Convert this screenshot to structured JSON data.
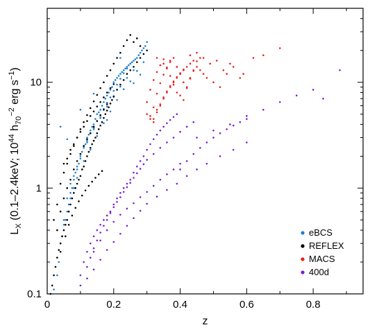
{
  "chart_data": {
    "type": "scatter",
    "title": "",
    "xlabel": "z",
    "ylabel": "L_X (0.1–2.4keV; 10^44 h_70^-2 erg s^-1)",
    "ylabel_parts": {
      "base": "L",
      "sub": "X",
      "p1": " (0.1–2.4keV; 10",
      "sup1": "44",
      "p2": " h",
      "sub2": "70",
      "sup2": "−2",
      "p3": " erg s",
      "sup3": "−1",
      "p4": ")"
    },
    "xlim": [
      0,
      0.95
    ],
    "ylim": [
      0.1,
      50
    ],
    "yscale": "log",
    "x_ticks": [
      {
        "value": 0,
        "label": "0"
      },
      {
        "value": 0.2,
        "label": "0.2"
      },
      {
        "value": 0.4,
        "label": "0.4"
      },
      {
        "value": 0.6,
        "label": "0.6"
      },
      {
        "value": 0.8,
        "label": "0.8"
      }
    ],
    "y_ticks": [
      {
        "value": 0.1,
        "label": "0.1"
      },
      {
        "value": 1,
        "label": "1"
      },
      {
        "value": 10,
        "label": "10"
      }
    ],
    "grid": false,
    "legend_position": "bottom-right",
    "series": [
      {
        "name": "eBCS",
        "color": "#1f7fd0",
        "x": [
          0.02,
          0.03,
          0.035,
          0.04,
          0.045,
          0.05,
          0.055,
          0.06,
          0.065,
          0.07,
          0.075,
          0.08,
          0.085,
          0.09,
          0.095,
          0.1,
          0.105,
          0.11,
          0.115,
          0.12,
          0.125,
          0.13,
          0.135,
          0.14,
          0.145,
          0.15,
          0.155,
          0.16,
          0.165,
          0.17,
          0.175,
          0.18,
          0.185,
          0.19,
          0.195,
          0.2,
          0.205,
          0.21,
          0.215,
          0.22,
          0.225,
          0.23,
          0.235,
          0.24,
          0.245,
          0.25,
          0.255,
          0.26,
          0.265,
          0.27,
          0.275,
          0.28,
          0.285,
          0.29,
          0.295,
          0.3,
          0.06,
          0.07,
          0.08,
          0.09,
          0.1,
          0.11,
          0.12,
          0.13,
          0.14,
          0.15,
          0.16,
          0.17,
          0.18,
          0.19,
          0.2,
          0.21,
          0.22,
          0.23,
          0.24,
          0.25,
          0.08,
          0.1,
          0.12,
          0.14,
          0.16,
          0.18,
          0.2,
          0.22,
          0.24,
          0.26,
          0.05,
          0.07,
          0.09,
          0.11,
          0.13,
          0.15,
          0.17,
          0.19,
          0.21,
          0.23,
          0.25,
          0.27,
          0.29,
          0.04,
          0.06,
          0.1,
          0.14,
          0.18,
          0.22,
          0.26,
          0.28
        ],
        "y": [
          0.11,
          0.15,
          0.2,
          0.3,
          0.35,
          0.45,
          0.5,
          0.6,
          0.7,
          0.8,
          1.0,
          1.2,
          1.4,
          1.5,
          1.7,
          2.0,
          2.2,
          2.5,
          2.6,
          3.0,
          3.2,
          3.5,
          3.8,
          4.0,
          4.5,
          5.0,
          5.2,
          5.5,
          6.0,
          6.5,
          7.0,
          7.5,
          8.0,
          8.5,
          9.0,
          10,
          10.5,
          11,
          11.5,
          12,
          12.5,
          13,
          13.5,
          14,
          14.5,
          15,
          15.5,
          16,
          16.5,
          17,
          18,
          19,
          20,
          21,
          22,
          24,
          0.8,
          1.1,
          1.3,
          1.6,
          2.1,
          2.4,
          2.8,
          3.3,
          3.7,
          4.3,
          4.8,
          5.6,
          6.4,
          7.2,
          8.3,
          9.5,
          10.8,
          12.2,
          13.5,
          15,
          1.0,
          1.9,
          2.7,
          3.6,
          4.6,
          5.9,
          7.4,
          9.1,
          11,
          13,
          0.5,
          0.9,
          1.25,
          1.8,
          2.3,
          3.1,
          4.1,
          5.3,
          6.8,
          8.6,
          10.2,
          12.8,
          15.5,
          3.8,
          2.9,
          5.5,
          7.8,
          4.4,
          17,
          9.8,
          11.8
        ]
      },
      {
        "name": "REFLEX",
        "color": "#000000",
        "x": [
          0.01,
          0.015,
          0.02,
          0.025,
          0.03,
          0.035,
          0.04,
          0.045,
          0.05,
          0.055,
          0.06,
          0.065,
          0.07,
          0.075,
          0.08,
          0.085,
          0.09,
          0.095,
          0.1,
          0.105,
          0.11,
          0.115,
          0.12,
          0.125,
          0.13,
          0.135,
          0.14,
          0.145,
          0.15,
          0.155,
          0.16,
          0.165,
          0.17,
          0.175,
          0.18,
          0.185,
          0.19,
          0.195,
          0.2,
          0.21,
          0.22,
          0.23,
          0.24,
          0.25,
          0.26,
          0.27,
          0.28,
          0.29,
          0.3,
          0.05,
          0.06,
          0.07,
          0.08,
          0.09,
          0.1,
          0.11,
          0.12,
          0.13,
          0.14,
          0.15,
          0.16,
          0.17,
          0.18,
          0.19,
          0.2,
          0.03,
          0.04,
          0.05,
          0.06,
          0.07,
          0.08,
          0.09,
          0.1,
          0.11,
          0.12,
          0.13,
          0.14,
          0.15,
          0.16,
          0.17,
          0.18,
          0.04,
          0.055,
          0.065,
          0.075,
          0.085,
          0.095,
          0.105,
          0.115,
          0.125,
          0.135,
          0.145,
          0.155,
          0.165,
          0.02,
          0.03,
          0.04,
          0.05,
          0.06,
          0.07,
          0.08,
          0.09,
          0.1,
          0.11,
          0.12,
          0.13,
          0.14,
          0.15,
          0.16,
          0.17,
          0.18,
          0.19,
          0.2,
          0.21,
          0.22,
          0.23,
          0.24,
          0.25,
          0.26,
          0.27,
          0.28
        ],
        "y": [
          0.1,
          0.12,
          0.15,
          0.18,
          0.22,
          0.26,
          0.3,
          0.35,
          0.4,
          0.45,
          0.5,
          0.6,
          0.7,
          0.8,
          0.9,
          1.0,
          1.1,
          1.2,
          1.3,
          1.5,
          1.6,
          1.8,
          2.0,
          2.2,
          2.4,
          2.6,
          2.8,
          3.0,
          3.3,
          3.6,
          3.9,
          4.2,
          4.6,
          5.0,
          5.4,
          5.8,
          6.3,
          6.8,
          7.3,
          8.5,
          9.5,
          10.5,
          12,
          13,
          14,
          15.5,
          17,
          18.5,
          20,
          1.7,
          1.9,
          2.3,
          2.6,
          3.0,
          3.4,
          3.8,
          4.3,
          4.8,
          5.3,
          5.9,
          6.5,
          7.2,
          8.0,
          8.8,
          9.6,
          0.4,
          0.6,
          0.8,
          1.0,
          1.2,
          1.5,
          1.8,
          2.1,
          2.5,
          2.9,
          3.3,
          3.8,
          4.3,
          4.9,
          5.5,
          6.2,
          0.25,
          0.35,
          0.45,
          0.55,
          0.65,
          0.75,
          0.85,
          0.95,
          1.05,
          1.15,
          1.25,
          1.35,
          1.45,
          0.5,
          0.7,
          1.1,
          1.4,
          1.7,
          2.1,
          2.5,
          3.0,
          3.6,
          4.2,
          4.9,
          5.7,
          6.6,
          7.6,
          8.8,
          10,
          11.5,
          13,
          15,
          17,
          19,
          22,
          25,
          28,
          24,
          26,
          22
        ]
      },
      {
        "name": "MACS",
        "color": "#e8221b",
        "x": [
          0.3,
          0.31,
          0.32,
          0.33,
          0.34,
          0.35,
          0.36,
          0.37,
          0.38,
          0.39,
          0.4,
          0.41,
          0.42,
          0.43,
          0.44,
          0.45,
          0.46,
          0.47,
          0.48,
          0.5,
          0.52,
          0.54,
          0.55,
          0.58,
          0.3,
          0.31,
          0.32,
          0.33,
          0.34,
          0.35,
          0.36,
          0.37,
          0.38,
          0.39,
          0.4,
          0.41,
          0.42,
          0.43,
          0.44,
          0.45,
          0.46,
          0.31,
          0.32,
          0.33,
          0.34,
          0.35,
          0.36,
          0.37,
          0.38,
          0.39,
          0.4,
          0.41,
          0.42,
          0.43,
          0.44,
          0.32,
          0.33,
          0.34,
          0.35,
          0.36,
          0.37,
          0.38,
          0.39,
          0.4,
          0.41,
          0.33,
          0.35,
          0.37,
          0.39,
          0.41,
          0.43,
          0.45,
          0.47,
          0.49,
          0.51,
          0.53,
          0.56,
          0.59,
          0.62,
          0.65,
          0.7
        ],
        "y": [
          5.0,
          4.5,
          4.2,
          5.5,
          6.0,
          7.0,
          8.0,
          9.0,
          10,
          11,
          12,
          13,
          14,
          15,
          16,
          14,
          13,
          12,
          11,
          10,
          9,
          12,
          15,
          11,
          6.5,
          8.5,
          10.5,
          12.5,
          14.5,
          16.5,
          13.5,
          11.5,
          9.5,
          8.0,
          7.5,
          6.8,
          8.8,
          10.8,
          12.8,
          15.8,
          17,
          4.8,
          5.8,
          7.8,
          9.8,
          11.8,
          13.8,
          15.5,
          17,
          14,
          12,
          10,
          9,
          11,
          13,
          4.5,
          5.2,
          6.2,
          7.2,
          8.2,
          9.2,
          10.2,
          11.2,
          12.2,
          13.2,
          17,
          15,
          16,
          14,
          13,
          18,
          19,
          17,
          15,
          16,
          13,
          14,
          12,
          17,
          18,
          21
        ]
      },
      {
        "name": "400d",
        "color": "#7a1fd0",
        "x": [
          0.1,
          0.11,
          0.12,
          0.13,
          0.14,
          0.15,
          0.16,
          0.17,
          0.18,
          0.19,
          0.2,
          0.21,
          0.22,
          0.23,
          0.24,
          0.25,
          0.26,
          0.27,
          0.28,
          0.29,
          0.3,
          0.31,
          0.32,
          0.33,
          0.34,
          0.35,
          0.36,
          0.37,
          0.38,
          0.39,
          0.4,
          0.42,
          0.44,
          0.46,
          0.48,
          0.5,
          0.52,
          0.54,
          0.56,
          0.58,
          0.6,
          0.12,
          0.13,
          0.14,
          0.15,
          0.16,
          0.17,
          0.18,
          0.19,
          0.2,
          0.21,
          0.22,
          0.23,
          0.24,
          0.25,
          0.26,
          0.27,
          0.28,
          0.29,
          0.3,
          0.32,
          0.34,
          0.36,
          0.38,
          0.4,
          0.42,
          0.44,
          0.14,
          0.16,
          0.18,
          0.2,
          0.22,
          0.24,
          0.26,
          0.28,
          0.3,
          0.32,
          0.34,
          0.36,
          0.38,
          0.4,
          0.45,
          0.5,
          0.55,
          0.6,
          0.65,
          0.7,
          0.75,
          0.8,
          0.83,
          0.88,
          0.1,
          0.12,
          0.14,
          0.16,
          0.18,
          0.2,
          0.22,
          0.24,
          0.26,
          0.28,
          0.3,
          0.33,
          0.36,
          0.39,
          0.42,
          0.45,
          0.48,
          0.52,
          0.56,
          0.6
        ],
        "y": [
          0.15,
          0.2,
          0.25,
          0.3,
          0.35,
          0.4,
          0.45,
          0.5,
          0.55,
          0.6,
          0.7,
          0.8,
          0.9,
          1.0,
          1.1,
          1.2,
          1.4,
          1.6,
          1.8,
          2.0,
          2.3,
          2.6,
          2.9,
          3.2,
          3.5,
          3.8,
          4.1,
          4.4,
          4.7,
          5.0,
          1.5,
          1.8,
          2.1,
          2.4,
          2.7,
          3.0,
          3.3,
          3.6,
          3.9,
          4.2,
          4.5,
          0.18,
          0.22,
          0.27,
          0.32,
          0.38,
          0.44,
          0.5,
          0.58,
          0.66,
          0.74,
          0.82,
          0.92,
          1.02,
          1.12,
          1.25,
          1.38,
          1.52,
          1.68,
          1.85,
          2.1,
          2.4,
          2.7,
          3.0,
          3.4,
          3.8,
          4.2,
          0.25,
          0.32,
          0.4,
          0.48,
          0.56,
          0.64,
          0.72,
          0.82,
          0.92,
          1.05,
          1.2,
          1.35,
          1.5,
          1.7,
          3.0,
          3.5,
          4.0,
          4.8,
          5.5,
          6.5,
          7.5,
          8.5,
          7.0,
          13,
          0.12,
          0.14,
          0.17,
          0.21,
          0.26,
          0.31,
          0.37,
          0.44,
          0.52,
          0.61,
          0.71,
          0.83,
          0.96,
          1.1,
          1.3,
          1.5,
          1.7,
          2.0,
          2.3,
          2.7
        ]
      }
    ]
  }
}
